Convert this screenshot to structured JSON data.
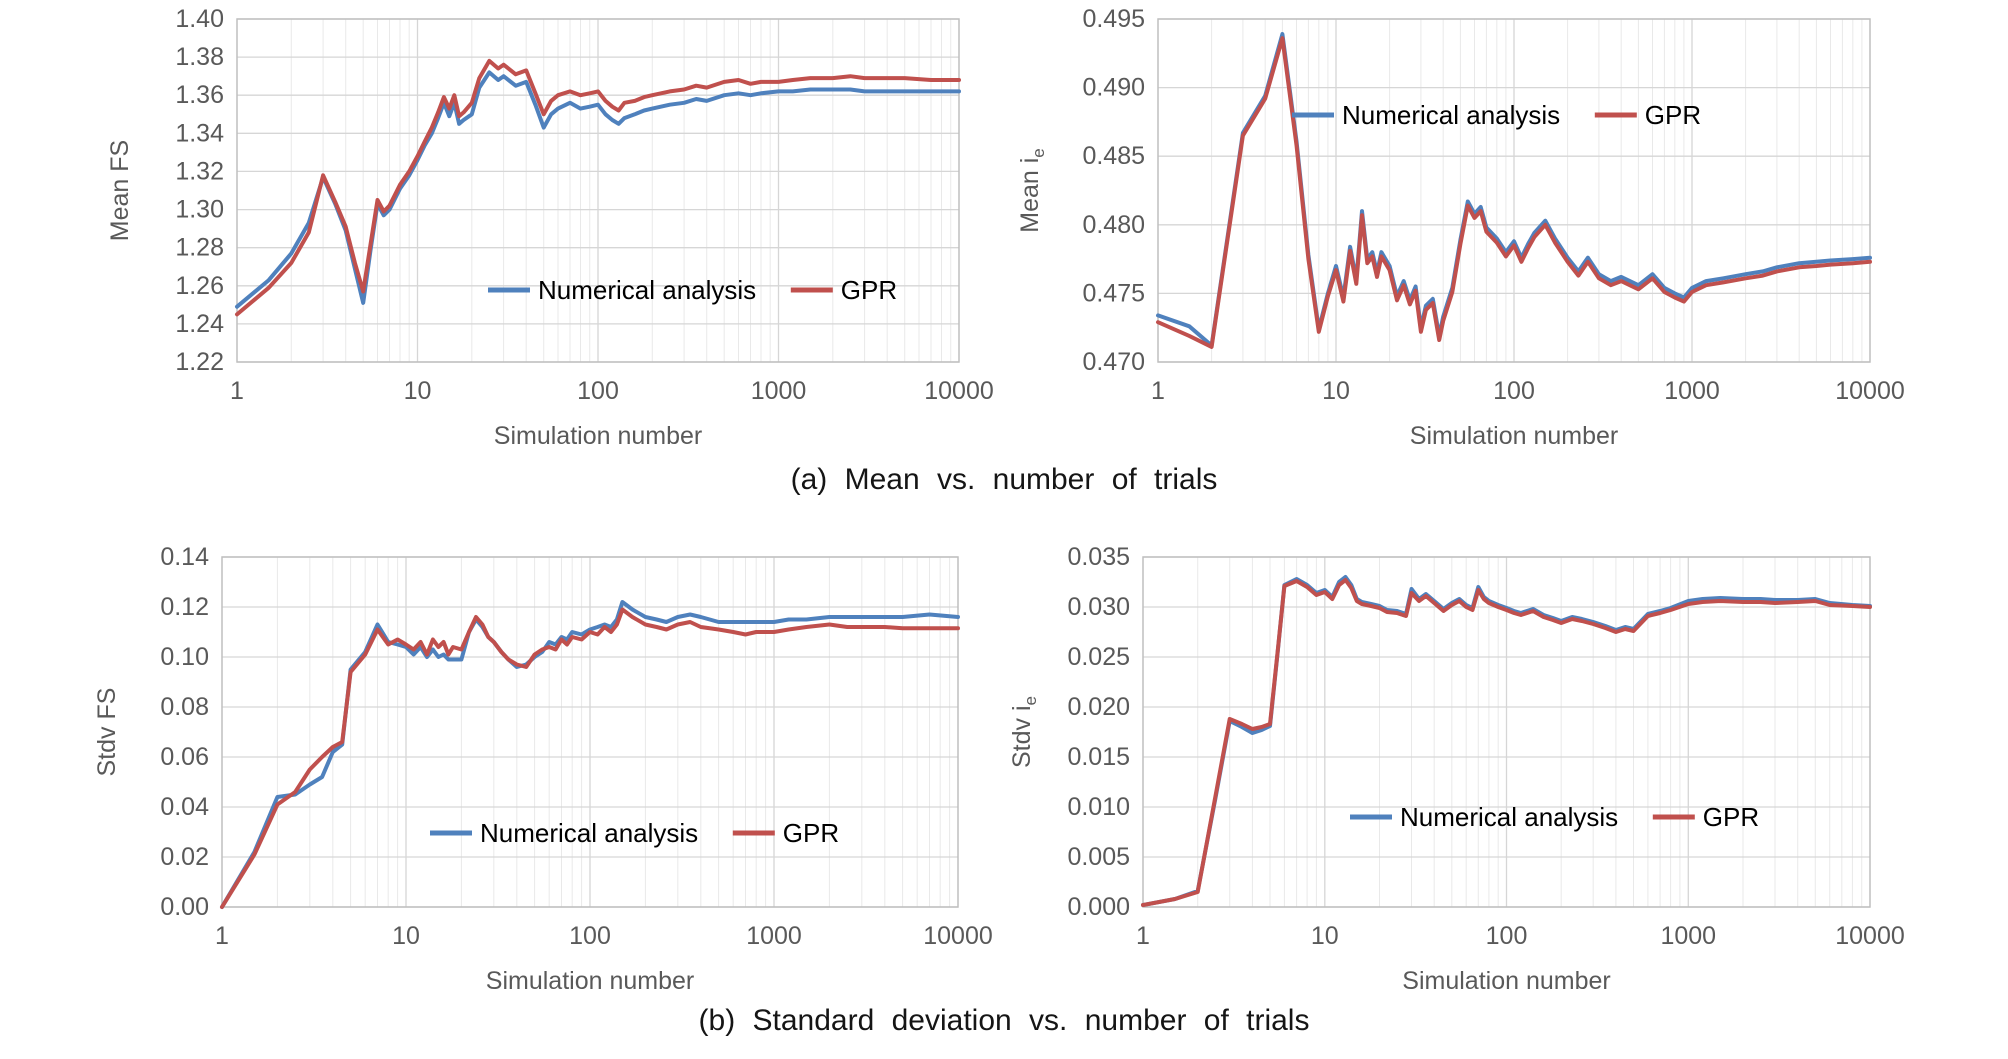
{
  "figure": {
    "captions": {
      "a": "(a) Mean vs. number of trials",
      "b": "(b) Standard deviation vs. number of trials"
    }
  },
  "theme": {
    "series_blue": "#4F81BD",
    "series_red": "#C0504D",
    "grid_minor": "#E9E9E9",
    "grid_major": "#D6D6D6",
    "border": "#BFBFBF",
    "tick_text": "#595959",
    "legend_text": "#000000"
  },
  "chart_data": [
    {
      "type": "line",
      "xscale": "log",
      "title": "",
      "xlabel": "Simulation number",
      "ylabel": {
        "main": "Mean FS",
        "sub": ""
      },
      "xlim": [
        1,
        10000
      ],
      "ylim": [
        1.22,
        1.4
      ],
      "x_ticks": [
        "1",
        "10",
        "100",
        "1000",
        "10000"
      ],
      "y_ticks": [
        "1.22",
        "1.24",
        "1.26",
        "1.28",
        "1.30",
        "1.32",
        "1.34",
        "1.36",
        "1.38",
        "1.40"
      ],
      "grid": true,
      "legend_position": "inside-lower-middle",
      "legend_pos": {
        "x": 488,
        "y": 290
      },
      "plot": {
        "l": 237,
        "t": 19,
        "r": 959,
        "b": 362
      },
      "ylabel_x": 128,
      "x": [
        1,
        1.5,
        2,
        2.5,
        3,
        3.5,
        4,
        4.5,
        5,
        5.5,
        6,
        6.5,
        7,
        8,
        9,
        10,
        11,
        12,
        13,
        14,
        15,
        16,
        17,
        18,
        20,
        22,
        25,
        28,
        30,
        35,
        40,
        45,
        50,
        55,
        60,
        70,
        80,
        90,
        100,
        110,
        120,
        130,
        140,
        160,
        180,
        200,
        250,
        300,
        350,
        400,
        500,
        600,
        700,
        800,
        1000,
        1200,
        1500,
        2000,
        2500,
        3000,
        4000,
        5000,
        7000,
        10000
      ],
      "series": [
        {
          "name": "Numerical analysis",
          "color": "#4F81BD",
          "y": [
            1.249,
            1.263,
            1.277,
            1.293,
            1.317,
            1.303,
            1.289,
            1.269,
            1.251,
            1.279,
            1.303,
            1.297,
            1.3,
            1.311,
            1.318,
            1.326,
            1.334,
            1.34,
            1.348,
            1.356,
            1.349,
            1.356,
            1.345,
            1.347,
            1.35,
            1.364,
            1.372,
            1.368,
            1.37,
            1.365,
            1.367,
            1.355,
            1.343,
            1.35,
            1.353,
            1.356,
            1.353,
            1.354,
            1.355,
            1.35,
            1.347,
            1.345,
            1.348,
            1.35,
            1.352,
            1.353,
            1.355,
            1.356,
            1.358,
            1.357,
            1.36,
            1.361,
            1.36,
            1.361,
            1.362,
            1.362,
            1.363,
            1.363,
            1.363,
            1.362,
            1.362,
            1.362,
            1.362,
            1.362
          ]
        },
        {
          "name": "GPR",
          "color": "#C0504D",
          "y": [
            1.245,
            1.259,
            1.272,
            1.288,
            1.318,
            1.304,
            1.291,
            1.272,
            1.257,
            1.282,
            1.305,
            1.299,
            1.302,
            1.313,
            1.32,
            1.328,
            1.336,
            1.343,
            1.351,
            1.359,
            1.353,
            1.36,
            1.349,
            1.351,
            1.356,
            1.369,
            1.378,
            1.374,
            1.376,
            1.371,
            1.373,
            1.361,
            1.35,
            1.357,
            1.36,
            1.362,
            1.36,
            1.361,
            1.362,
            1.357,
            1.354,
            1.352,
            1.356,
            1.357,
            1.359,
            1.36,
            1.362,
            1.363,
            1.365,
            1.364,
            1.367,
            1.368,
            1.366,
            1.367,
            1.367,
            1.368,
            1.369,
            1.369,
            1.37,
            1.369,
            1.369,
            1.369,
            1.368,
            1.368
          ]
        }
      ]
    },
    {
      "type": "line",
      "xscale": "log",
      "title": "",
      "xlabel": "Simulation number",
      "ylabel": {
        "main": "Mean i",
        "sub": "e"
      },
      "xlim": [
        1,
        10000
      ],
      "ylim": [
        0.47,
        0.495
      ],
      "x_ticks": [
        "1",
        "10",
        "100",
        "1000",
        "10000"
      ],
      "y_ticks": [
        "0.470",
        "0.475",
        "0.480",
        "0.485",
        "0.490",
        "0.495"
      ],
      "grid": true,
      "legend_position": "inside-upper-middle",
      "legend_pos": {
        "x": 284,
        "y": 115
      },
      "plot": {
        "l": 150,
        "t": 19,
        "r": 862,
        "b": 362
      },
      "ylabel_x": 30,
      "x": [
        1,
        1.5,
        2,
        3,
        4,
        5,
        6,
        7,
        8,
        9,
        10,
        11,
        12,
        13,
        14,
        15,
        16,
        17,
        18,
        20,
        22,
        24,
        26,
        28,
        30,
        32,
        35,
        38,
        40,
        45,
        50,
        55,
        60,
        65,
        70,
        80,
        90,
        100,
        110,
        120,
        130,
        150,
        170,
        200,
        230,
        260,
        300,
        350,
        400,
        500,
        600,
        700,
        800,
        900,
        1000,
        1200,
        1500,
        2000,
        2500,
        3000,
        4000,
        5000,
        6000,
        8000,
        10000
      ],
      "series": [
        {
          "name": "Numerical analysis",
          "color": "#4F81BD",
          "y": [
            0.4734,
            0.4726,
            0.4712,
            0.4867,
            0.4894,
            0.4939,
            0.4861,
            0.4778,
            0.4724,
            0.475,
            0.477,
            0.4747,
            0.4784,
            0.476,
            0.481,
            0.4775,
            0.478,
            0.4765,
            0.478,
            0.477,
            0.4748,
            0.4759,
            0.4745,
            0.4755,
            0.4725,
            0.4741,
            0.4746,
            0.4719,
            0.4733,
            0.4754,
            0.4789,
            0.4817,
            0.4808,
            0.4813,
            0.4798,
            0.479,
            0.478,
            0.4788,
            0.4776,
            0.4786,
            0.4794,
            0.4803,
            0.479,
            0.4776,
            0.4766,
            0.4776,
            0.4764,
            0.4759,
            0.4762,
            0.4756,
            0.4764,
            0.4754,
            0.475,
            0.4747,
            0.4754,
            0.4759,
            0.4761,
            0.4764,
            0.4766,
            0.4769,
            0.4772,
            0.4773,
            0.4774,
            0.4775,
            0.4776
          ]
        },
        {
          "name": "GPR",
          "color": "#C0504D",
          "y": [
            0.4729,
            0.4719,
            0.4711,
            0.4865,
            0.4892,
            0.4936,
            0.4858,
            0.4775,
            0.4722,
            0.4748,
            0.4767,
            0.4744,
            0.4781,
            0.4757,
            0.4807,
            0.4772,
            0.4777,
            0.4762,
            0.4777,
            0.4767,
            0.4745,
            0.4756,
            0.4742,
            0.4752,
            0.4722,
            0.4738,
            0.4743,
            0.4716,
            0.473,
            0.4751,
            0.4786,
            0.4814,
            0.4805,
            0.481,
            0.4795,
            0.4787,
            0.4777,
            0.4785,
            0.4773,
            0.4783,
            0.4791,
            0.48,
            0.4787,
            0.4773,
            0.4763,
            0.4773,
            0.4761,
            0.4756,
            0.4759,
            0.4753,
            0.4761,
            0.4751,
            0.4747,
            0.4744,
            0.4751,
            0.4756,
            0.4758,
            0.4761,
            0.4763,
            0.4766,
            0.4769,
            0.477,
            0.4771,
            0.4772,
            0.4773
          ]
        }
      ]
    },
    {
      "type": "line",
      "xscale": "log",
      "title": "",
      "xlabel": "Simulation number",
      "ylabel": {
        "main": "Stdv FS",
        "sub": ""
      },
      "xlim": [
        1,
        10000
      ],
      "ylim": [
        0.0,
        0.14
      ],
      "x_ticks": [
        "1",
        "10",
        "100",
        "1000",
        "10000"
      ],
      "y_ticks": [
        "0.00",
        "0.02",
        "0.04",
        "0.06",
        "0.08",
        "0.10",
        "0.12",
        "0.14"
      ],
      "grid": true,
      "legend_position": "inside-lower-middle",
      "legend_pos": {
        "x": 430,
        "y": 288
      },
      "plot": {
        "l": 222,
        "t": 12,
        "r": 958,
        "b": 362
      },
      "ylabel_x": 115,
      "x": [
        1,
        1.5,
        2,
        2.5,
        3,
        3.5,
        4,
        4.5,
        5,
        6,
        7,
        8,
        9,
        10,
        11,
        12,
        13,
        14,
        15,
        16,
        17,
        18,
        20,
        22,
        24,
        26,
        28,
        30,
        33,
        36,
        40,
        45,
        50,
        55,
        60,
        65,
        70,
        75,
        80,
        90,
        100,
        110,
        120,
        130,
        140,
        150,
        170,
        200,
        230,
        260,
        300,
        350,
        400,
        500,
        600,
        700,
        800,
        1000,
        1200,
        1500,
        2000,
        2500,
        3000,
        4000,
        5000,
        7000,
        10000
      ],
      "series": [
        {
          "name": "Numerical analysis",
          "color": "#4F81BD",
          "y": [
            0.0,
            0.022,
            0.044,
            0.045,
            0.049,
            0.052,
            0.062,
            0.065,
            0.095,
            0.102,
            0.113,
            0.106,
            0.105,
            0.104,
            0.101,
            0.104,
            0.1,
            0.103,
            0.1,
            0.101,
            0.099,
            0.099,
            0.099,
            0.11,
            0.115,
            0.112,
            0.108,
            0.106,
            0.102,
            0.099,
            0.096,
            0.097,
            0.1,
            0.102,
            0.106,
            0.105,
            0.108,
            0.107,
            0.11,
            0.109,
            0.111,
            0.112,
            0.113,
            0.112,
            0.115,
            0.122,
            0.119,
            0.116,
            0.115,
            0.114,
            0.116,
            0.117,
            0.116,
            0.114,
            0.114,
            0.114,
            0.114,
            0.114,
            0.115,
            0.115,
            0.116,
            0.116,
            0.116,
            0.116,
            0.116,
            0.117,
            0.116
          ]
        },
        {
          "name": "GPR",
          "color": "#C0504D",
          "y": [
            0.0,
            0.021,
            0.041,
            0.046,
            0.055,
            0.06,
            0.064,
            0.066,
            0.094,
            0.101,
            0.111,
            0.105,
            0.107,
            0.105,
            0.103,
            0.106,
            0.101,
            0.107,
            0.104,
            0.106,
            0.101,
            0.104,
            0.103,
            0.11,
            0.116,
            0.113,
            0.108,
            0.106,
            0.102,
            0.099,
            0.097,
            0.096,
            0.101,
            0.103,
            0.104,
            0.103,
            0.107,
            0.105,
            0.108,
            0.107,
            0.11,
            0.109,
            0.112,
            0.11,
            0.113,
            0.119,
            0.116,
            0.113,
            0.112,
            0.111,
            0.113,
            0.114,
            0.112,
            0.111,
            0.11,
            0.109,
            0.11,
            0.11,
            0.111,
            0.112,
            0.113,
            0.112,
            0.112,
            0.112,
            0.1115,
            0.1115,
            0.1115
          ]
        }
      ]
    },
    {
      "type": "line",
      "xscale": "log",
      "title": "",
      "xlabel": "Simulation number",
      "ylabel": {
        "main": "Stdv i",
        "sub": "e"
      },
      "xlim": [
        1,
        10000
      ],
      "ylim": [
        0.0,
        0.035
      ],
      "x_ticks": [
        "1",
        "10",
        "100",
        "1000",
        "10000"
      ],
      "y_ticks": [
        "0.000",
        "0.005",
        "0.010",
        "0.015",
        "0.020",
        "0.025",
        "0.030",
        "0.035"
      ],
      "grid": true,
      "legend_position": "inside-lower-middle",
      "legend_pos": {
        "x": 342,
        "y": 272
      },
      "plot": {
        "l": 135,
        "t": 12,
        "r": 862,
        "b": 362
      },
      "ylabel_x": 22,
      "x": [
        1,
        1.5,
        2,
        2.5,
        3,
        3.5,
        4,
        4.5,
        5,
        5.5,
        6,
        7,
        8,
        9,
        10,
        11,
        12,
        13,
        14,
        15,
        16,
        18,
        20,
        22,
        25,
        28,
        30,
        33,
        36,
        40,
        45,
        50,
        55,
        60,
        65,
        70,
        75,
        80,
        90,
        100,
        110,
        120,
        140,
        160,
        180,
        200,
        230,
        260,
        300,
        350,
        400,
        450,
        500,
        600,
        700,
        800,
        1000,
        1200,
        1500,
        2000,
        2500,
        3000,
        4000,
        5000,
        6000,
        8000,
        10000
      ],
      "series": [
        {
          "name": "Numerical analysis",
          "color": "#4F81BD",
          "y": [
            0.0002,
            0.0008,
            0.0016,
            0.0108,
            0.0186,
            0.018,
            0.0174,
            0.0177,
            0.0181,
            0.0254,
            0.0322,
            0.0328,
            0.0322,
            0.0314,
            0.0317,
            0.031,
            0.0325,
            0.033,
            0.0322,
            0.0308,
            0.0305,
            0.0303,
            0.0301,
            0.0297,
            0.0296,
            0.0293,
            0.0318,
            0.0308,
            0.0313,
            0.0306,
            0.0298,
            0.0304,
            0.0308,
            0.0302,
            0.0299,
            0.032,
            0.031,
            0.0306,
            0.0302,
            0.0299,
            0.0296,
            0.0294,
            0.0298,
            0.0292,
            0.0289,
            0.0286,
            0.029,
            0.0288,
            0.0285,
            0.0281,
            0.0277,
            0.028,
            0.0278,
            0.0293,
            0.0296,
            0.0299,
            0.0306,
            0.0308,
            0.0309,
            0.0308,
            0.0308,
            0.0307,
            0.0307,
            0.0308,
            0.0304,
            0.0302,
            0.0301
          ]
        },
        {
          "name": "GPR",
          "color": "#C0504D",
          "y": [
            0.0002,
            0.0008,
            0.0015,
            0.011,
            0.0188,
            0.0183,
            0.0178,
            0.018,
            0.0183,
            0.0255,
            0.0321,
            0.0326,
            0.032,
            0.0312,
            0.0315,
            0.0308,
            0.0322,
            0.0327,
            0.0319,
            0.0306,
            0.0303,
            0.0301,
            0.0299,
            0.0295,
            0.0294,
            0.0291,
            0.0314,
            0.0306,
            0.0311,
            0.0304,
            0.0296,
            0.0302,
            0.0306,
            0.03,
            0.0297,
            0.0317,
            0.0308,
            0.0304,
            0.03,
            0.0297,
            0.0294,
            0.0292,
            0.0296,
            0.029,
            0.0287,
            0.0284,
            0.0288,
            0.0286,
            0.0283,
            0.0279,
            0.0275,
            0.0278,
            0.0276,
            0.0291,
            0.0294,
            0.0297,
            0.0303,
            0.0305,
            0.0306,
            0.0305,
            0.0305,
            0.0304,
            0.0305,
            0.0306,
            0.0302,
            0.0301,
            0.03
          ]
        }
      ]
    }
  ]
}
